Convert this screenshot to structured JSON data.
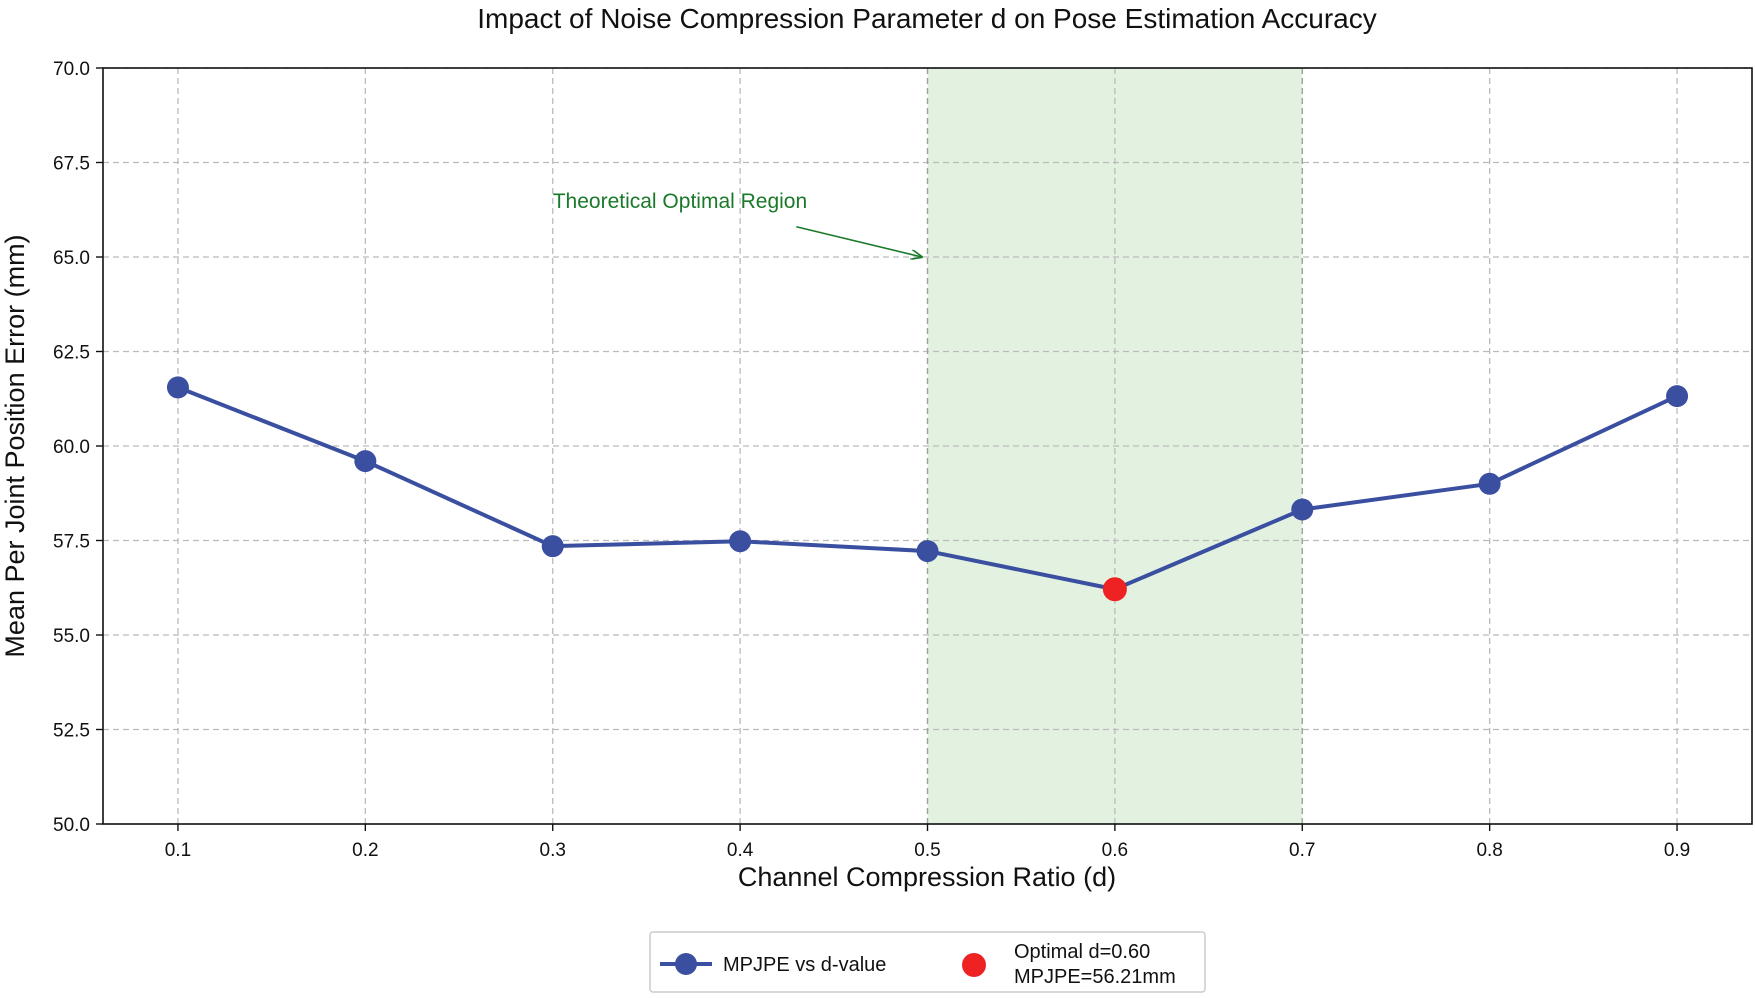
{
  "chart_data": {
    "type": "line",
    "title": "Impact of Noise Compression Parameter d on Pose Estimation Accuracy",
    "xlabel": "Channel Compression Ratio (d)",
    "ylabel": "Mean Per Joint Position Error (mm)",
    "x": [
      0.1,
      0.2,
      0.3,
      0.4,
      0.5,
      0.6,
      0.7,
      0.8,
      0.9
    ],
    "x_tick_labels": [
      "0.1",
      "0.2",
      "0.3",
      "0.4",
      "0.5",
      "0.6",
      "0.7",
      "0.8",
      "0.9"
    ],
    "xlim": [
      0.06,
      0.94
    ],
    "ylim": [
      50.0,
      70.0
    ],
    "y_ticks": [
      50.0,
      52.5,
      55.0,
      57.5,
      60.0,
      62.5,
      65.0,
      67.5,
      70.0
    ],
    "y_tick_labels": [
      "50.0",
      "52.5",
      "55.0",
      "57.5",
      "60.0",
      "62.5",
      "65.0",
      "67.5",
      "70.0"
    ],
    "grid": true,
    "series": [
      {
        "name": "MPJPE vs d-value",
        "color": "#3a4fa0",
        "values": [
          61.55,
          59.6,
          57.35,
          57.48,
          57.22,
          56.21,
          58.32,
          59.0,
          61.32
        ]
      }
    ],
    "optimal_point": {
      "x": 0.6,
      "y": 56.21,
      "color": "#ee2222",
      "legend_line1": "Optimal d=0.60",
      "legend_line2": "MPJPE=56.21mm"
    },
    "region": {
      "x_start": 0.5,
      "x_end": 0.7,
      "fill_color": "#e2f1e0",
      "label": "Theoretical Optimal Region",
      "label_color": "#1a7a2a",
      "label_anchor": [
        0.3,
        66.3
      ],
      "arrow_start": [
        0.43,
        65.8
      ],
      "arrow_target": [
        0.497,
        65.0
      ]
    },
    "legend_position": "bottom-center"
  }
}
